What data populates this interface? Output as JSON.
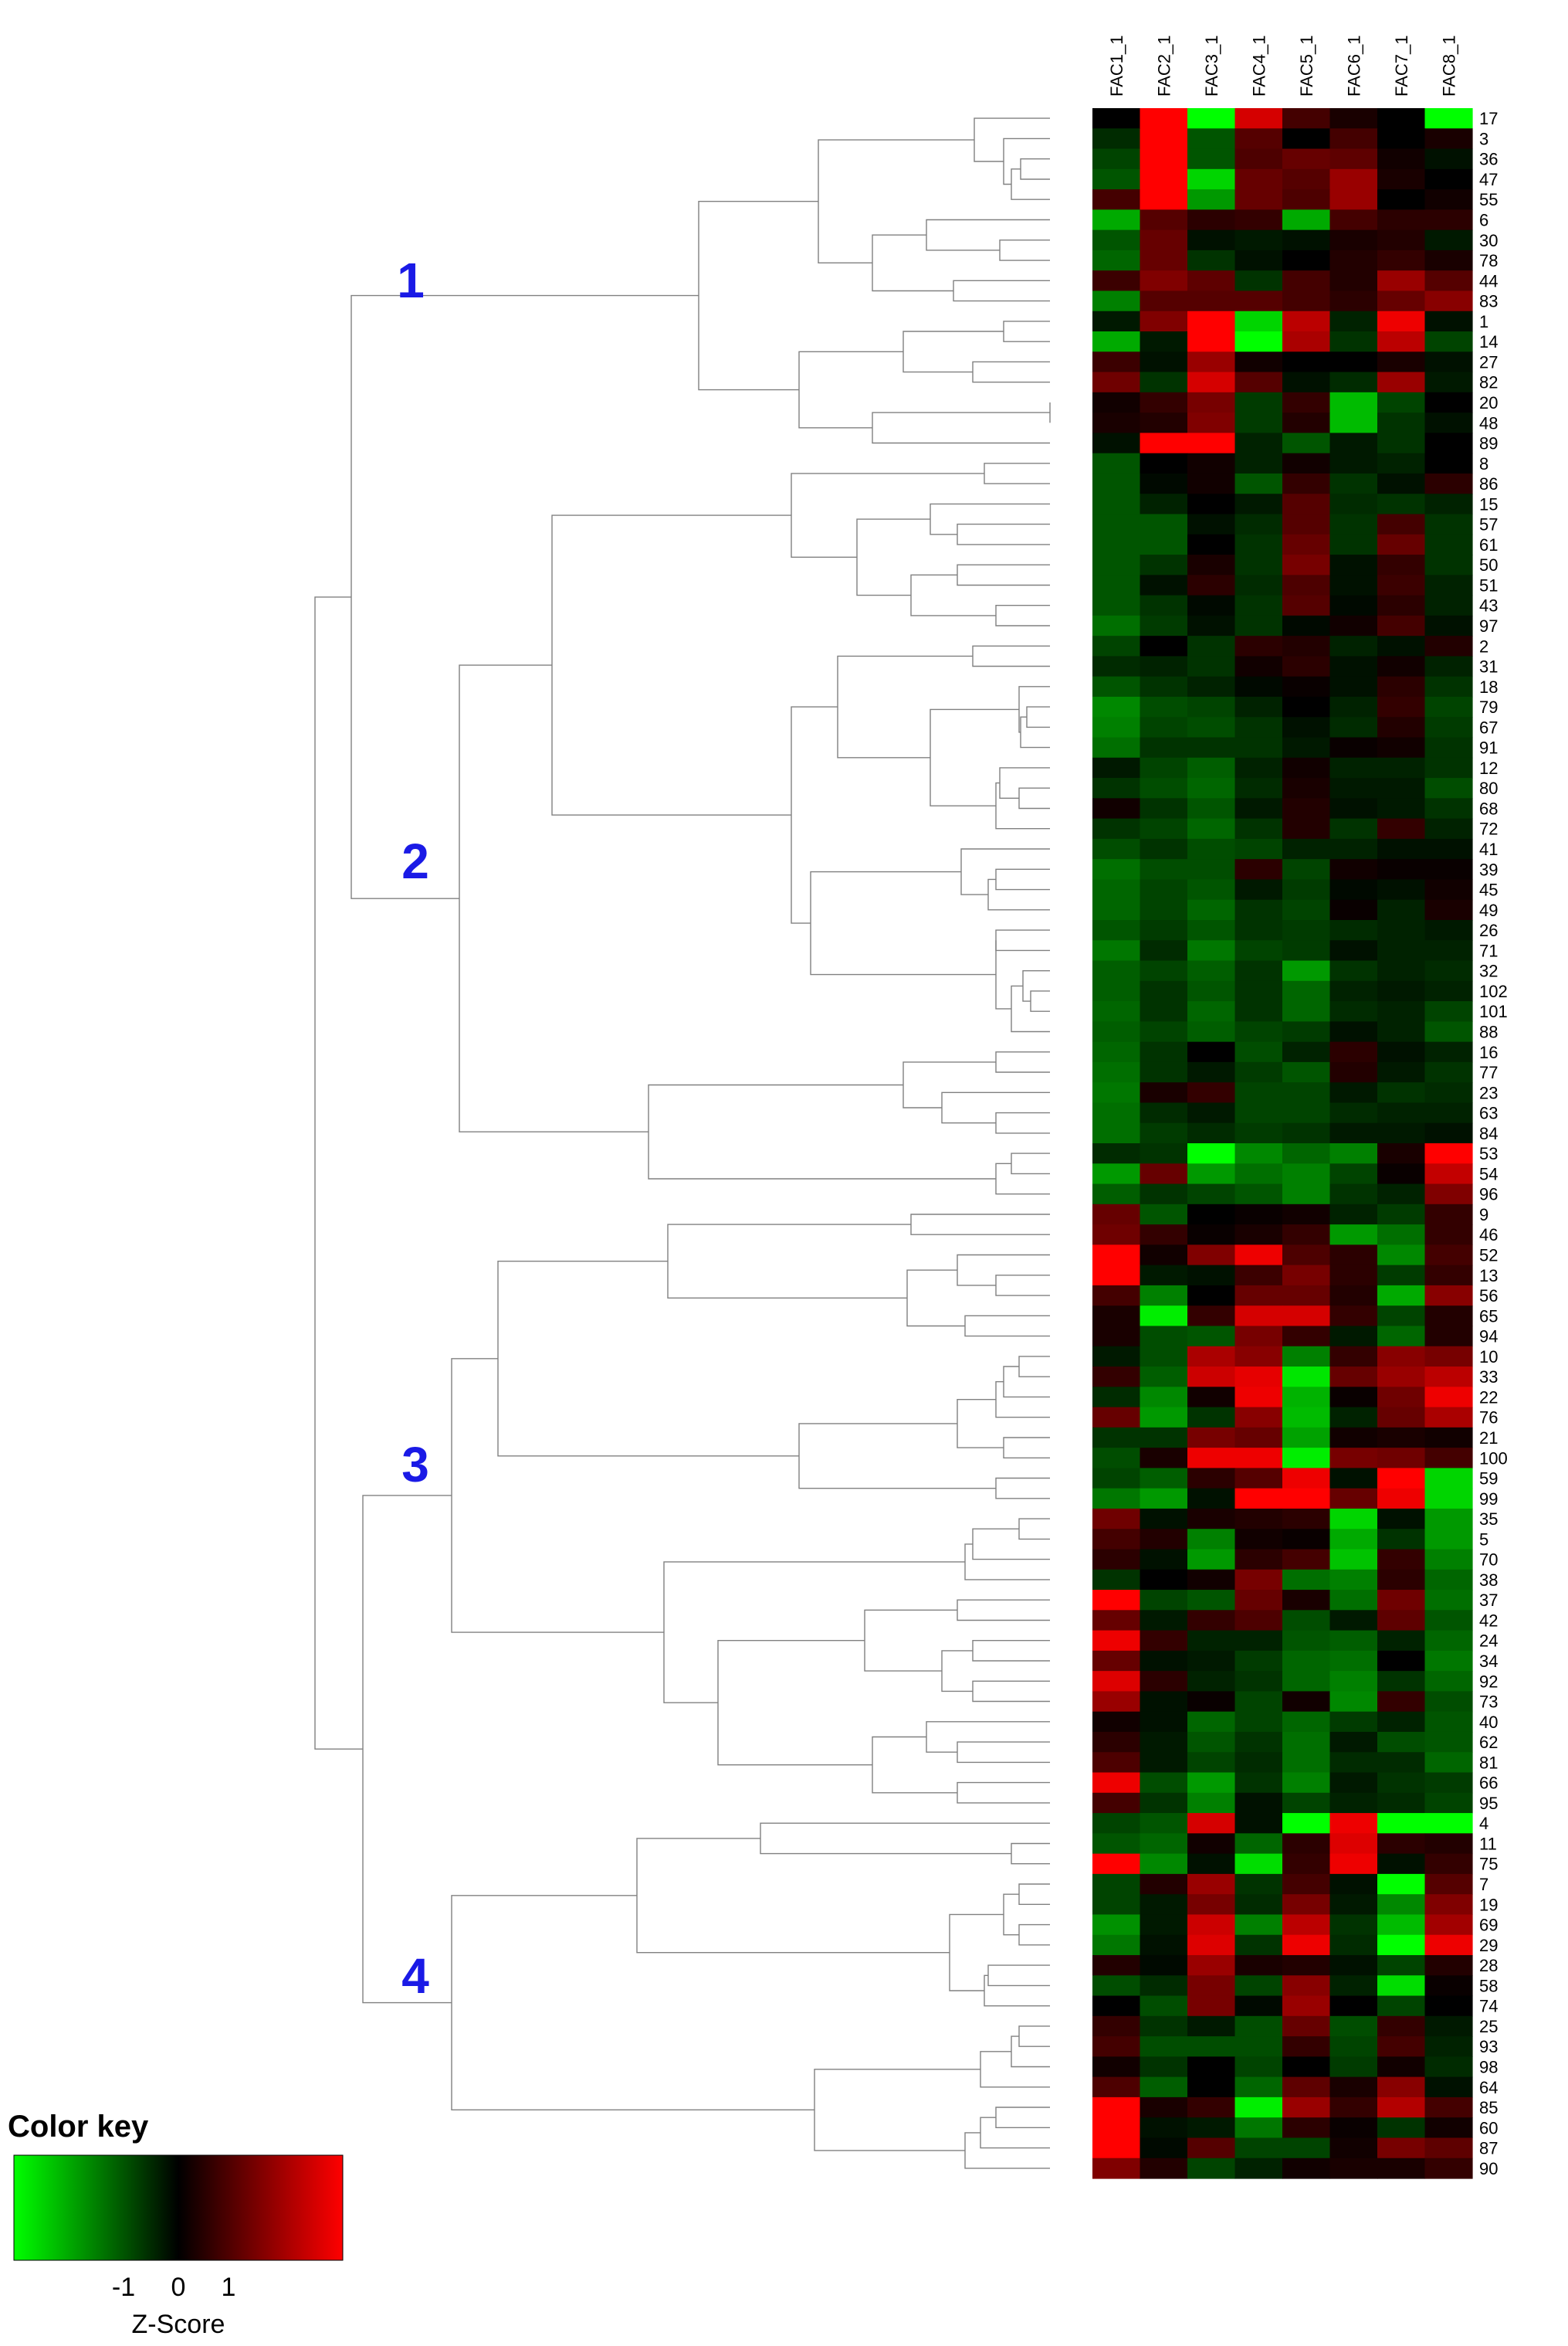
{
  "chart_data": {
    "type": "heatmap",
    "title": "",
    "columns": [
      "FAC1_1",
      "FAC2_1",
      "FAC3_1",
      "FAC4_1",
      "FAC5_1",
      "FAC6_1",
      "FAC7_1",
      "FAC8_1"
    ],
    "rows": [
      "17",
      "3",
      "36",
      "47",
      "55",
      "6",
      "30",
      "78",
      "44",
      "83",
      "1",
      "14",
      "27",
      "82",
      "20",
      "48",
      "89",
      "8",
      "86",
      "15",
      "57",
      "61",
      "50",
      "51",
      "43",
      "97",
      "2",
      "31",
      "18",
      "79",
      "67",
      "91",
      "12",
      "80",
      "68",
      "72",
      "41",
      "39",
      "45",
      "49",
      "26",
      "71",
      "32",
      "102",
      "101",
      "88",
      "16",
      "77",
      "23",
      "63",
      "84",
      "53",
      "54",
      "96",
      "9",
      "46",
      "52",
      "13",
      "56",
      "65",
      "94",
      "10",
      "33",
      "22",
      "76",
      "21",
      "100",
      "59",
      "99",
      "35",
      "5",
      "70",
      "38",
      "37",
      "42",
      "24",
      "34",
      "92",
      "73",
      "40",
      "62",
      "81",
      "66",
      "95",
      "4",
      "11",
      "75",
      "7",
      "19",
      "69",
      "29",
      "28",
      "58",
      "74",
      "25",
      "93",
      "98",
      "64",
      "85",
      "60",
      "87",
      "90"
    ],
    "values": [
      [
        0,
        3,
        -3,
        2.5,
        0.8,
        0.3,
        0,
        -3
      ],
      [
        -0.5,
        3,
        -1,
        1,
        0,
        0.8,
        0,
        0.3
      ],
      [
        -0.8,
        3,
        -1,
        0.9,
        1.2,
        1.1,
        0.2,
        -0.2
      ],
      [
        -1,
        3,
        -2.5,
        1.2,
        1,
        1.8,
        0.3,
        0
      ],
      [
        0.8,
        3,
        -1.8,
        1.2,
        0.9,
        1.8,
        0,
        0.2
      ],
      [
        -2,
        1,
        0.5,
        0.6,
        -2,
        0.8,
        0.5,
        0.5
      ],
      [
        -1,
        1.2,
        -0.2,
        -0.3,
        -0.2,
        0.3,
        0.4,
        -0.3
      ],
      [
        -1.2,
        1.2,
        -0.6,
        -0.2,
        0,
        0.4,
        0.6,
        0.3
      ],
      [
        0.7,
        1.5,
        1.1,
        -0.6,
        0.8,
        0.4,
        1.8,
        1
      ],
      [
        -1.5,
        1,
        1,
        1,
        0.8,
        0.5,
        1.2,
        1.6
      ],
      [
        -0.3,
        1.5,
        3,
        -2.5,
        2.2,
        -0.4,
        2.8,
        -0.2
      ],
      [
        -2,
        -0.3,
        3,
        -3,
        2,
        -0.6,
        2.2,
        -0.8
      ],
      [
        0.7,
        -0.2,
        1.8,
        0.2,
        0,
        0,
        0.3,
        -0.2
      ],
      [
        1.3,
        -0.6,
        2.5,
        1,
        -0.2,
        -0.5,
        1.8,
        -0.3
      ],
      [
        0.2,
        0.6,
        1.4,
        -0.7,
        0.6,
        -2.2,
        -0.8,
        0
      ],
      [
        0.3,
        0.4,
        1.5,
        -0.7,
        0.4,
        -2.2,
        -0.6,
        -0.2
      ],
      [
        -0.2,
        3,
        3,
        -0.4,
        -1,
        -0.3,
        -0.6,
        0
      ],
      [
        -1,
        0,
        0.2,
        -0.4,
        0.2,
        -0.3,
        -0.4,
        0
      ],
      [
        -1,
        -0.1,
        0.2,
        -1,
        0.6,
        -0.6,
        -0.2,
        0.5
      ],
      [
        -1,
        -0.4,
        0,
        -0.3,
        1,
        -0.5,
        -0.6,
        -0.4
      ],
      [
        -1,
        -1,
        -0.2,
        -0.5,
        1,
        -0.6,
        0.8,
        -0.6
      ],
      [
        -1,
        -1,
        0,
        -0.6,
        1.2,
        -0.6,
        1.2,
        -0.6
      ],
      [
        -1,
        -0.6,
        0.3,
        -0.6,
        1.4,
        -0.2,
        0.6,
        -0.6
      ],
      [
        -1,
        -0.2,
        0.5,
        -0.5,
        0.9,
        -0.2,
        0.7,
        -0.4
      ],
      [
        -1,
        -0.6,
        -0.1,
        -0.6,
        1,
        -0.1,
        0.5,
        -0.4
      ],
      [
        -1.3,
        -0.7,
        -0.2,
        -0.6,
        -0.1,
        0.2,
        0.8,
        -0.2
      ],
      [
        -0.8,
        0,
        -0.6,
        0.5,
        0.4,
        -0.4,
        -0.2,
        0.4
      ],
      [
        -0.5,
        -0.4,
        -0.6,
        0.2,
        0.5,
        -0.2,
        0.2,
        -0.4
      ],
      [
        -1,
        -0.6,
        -0.4,
        -0.1,
        0.1,
        -0.2,
        0.5,
        -0.6
      ],
      [
        -1.6,
        -0.9,
        -0.8,
        -0.4,
        0,
        -0.4,
        0.6,
        -0.8
      ],
      [
        -1.5,
        -0.8,
        -0.9,
        -0.6,
        -0.2,
        -0.5,
        0.4,
        -0.7
      ],
      [
        -1.3,
        -0.6,
        -0.6,
        -0.6,
        -0.3,
        0.1,
        0.2,
        -0.6
      ],
      [
        -0.3,
        -0.8,
        -1.1,
        -0.4,
        0.2,
        -0.4,
        -0.4,
        -0.6
      ],
      [
        -0.6,
        -0.9,
        -1.2,
        -0.5,
        0.3,
        -0.3,
        -0.3,
        -0.9
      ],
      [
        0.2,
        -0.6,
        -1,
        -0.3,
        0.4,
        -0.2,
        -0.3,
        -0.6
      ],
      [
        -0.6,
        -0.8,
        -1.2,
        -0.6,
        0.4,
        -0.6,
        0.6,
        -0.4
      ],
      [
        -0.9,
        -0.6,
        -0.9,
        -0.8,
        -0.4,
        -0.4,
        -0.2,
        -0.2
      ],
      [
        -1.3,
        -0.9,
        -0.9,
        0.5,
        -0.8,
        0.2,
        0.1,
        0.1
      ],
      [
        -1.2,
        -0.8,
        -1,
        -0.3,
        -0.7,
        -0.1,
        -0.2,
        0.2
      ],
      [
        -1.2,
        -0.8,
        -1.2,
        -0.6,
        -0.8,
        0.1,
        -0.4,
        0.3
      ],
      [
        -1,
        -0.7,
        -1,
        -0.6,
        -0.7,
        -0.5,
        -0.4,
        -0.3
      ],
      [
        -1.4,
        -0.5,
        -1.4,
        -0.8,
        -0.7,
        -0.2,
        -0.4,
        -0.4
      ],
      [
        -1.1,
        -0.8,
        -1.1,
        -0.6,
        -1.8,
        -0.6,
        -0.4,
        -0.5
      ],
      [
        -1.1,
        -0.6,
        -1,
        -0.6,
        -1.2,
        -0.4,
        -0.3,
        -0.4
      ],
      [
        -1.2,
        -0.6,
        -1.2,
        -0.6,
        -1.2,
        -0.5,
        -0.4,
        -0.8
      ],
      [
        -1.1,
        -0.8,
        -1.1,
        -0.8,
        -0.7,
        -0.2,
        -0.4,
        -1
      ],
      [
        -1.2,
        -0.6,
        0,
        -0.9,
        -0.4,
        0.5,
        -0.2,
        -0.4
      ],
      [
        -1.3,
        -0.6,
        -0.3,
        -0.7,
        -1,
        0.4,
        -0.3,
        -0.6
      ],
      [
        -1.4,
        0.3,
        0.6,
        -0.8,
        -0.8,
        -0.3,
        -0.6,
        -0.5
      ],
      [
        -1.3,
        -0.5,
        -0.3,
        -0.8,
        -0.8,
        -0.5,
        -0.4,
        -0.4
      ],
      [
        -1.3,
        -0.7,
        -0.5,
        -0.7,
        -0.6,
        -0.3,
        -0.3,
        -0.2
      ],
      [
        -0.5,
        -0.6,
        -3,
        -1.6,
        -1.2,
        -1.5,
        0.3,
        3
      ],
      [
        -1.8,
        1.2,
        -1.8,
        -1.3,
        -1.5,
        -0.8,
        0.1,
        2.3
      ],
      [
        -1.1,
        -0.6,
        -0.8,
        -1,
        -1.5,
        -0.6,
        -0.4,
        1.5
      ],
      [
        1.2,
        -1,
        0,
        0.1,
        0.2,
        -0.4,
        -0.7,
        0.6
      ],
      [
        1.3,
        0.6,
        0.1,
        0.3,
        0.6,
        -1.8,
        -1.3,
        0.6
      ],
      [
        3,
        0.2,
        1.5,
        2.8,
        0.9,
        0.5,
        -1.6,
        0.8
      ],
      [
        3,
        -0.3,
        -0.2,
        0.7,
        1.4,
        0.5,
        -0.7,
        0.6
      ],
      [
        0.8,
        -1.5,
        0,
        1.2,
        1.2,
        0.4,
        -2,
        1.6
      ],
      [
        0.3,
        -2.8,
        0.6,
        2.5,
        2.5,
        0.6,
        -0.8,
        0.4
      ],
      [
        0.3,
        -0.9,
        -1,
        1.4,
        0.6,
        -0.3,
        -1.2,
        0.4
      ],
      [
        -0.3,
        -0.9,
        2,
        1.6,
        -1.5,
        0.6,
        1.6,
        1.4
      ],
      [
        0.6,
        -1.1,
        2.4,
        2.7,
        -2.7,
        1.2,
        1.8,
        2.2
      ],
      [
        -0.5,
        -1.6,
        0.2,
        2.8,
        -2.1,
        0.1,
        1.3,
        2.8
      ],
      [
        1.2,
        -1.8,
        -0.6,
        1.6,
        -2.2,
        -0.4,
        1.2,
        2
      ],
      [
        -0.6,
        -0.6,
        1.4,
        1.2,
        -1.9,
        0.2,
        0.3,
        0.2
      ],
      [
        -0.9,
        0.3,
        2.8,
        2.8,
        -2.8,
        1.4,
        1.3,
        0.8
      ],
      [
        -0.8,
        -1.1,
        0.5,
        1,
        2.8,
        -0.2,
        3,
        -2.5
      ],
      [
        -1.4,
        -1.8,
        -0.2,
        3,
        3,
        1.2,
        2.8,
        -2.5
      ],
      [
        1.3,
        -0.2,
        0.3,
        0.4,
        0.5,
        -2.5,
        -0.2,
        -1.8
      ],
      [
        0.8,
        0.4,
        -1.5,
        0.2,
        0.1,
        -2,
        -0.6,
        -1.8
      ],
      [
        0.5,
        -0.2,
        -1.8,
        0.5,
        0.8,
        -2.3,
        0.6,
        -1.5
      ],
      [
        -0.6,
        0,
        0.2,
        1.4,
        -1.3,
        -1.5,
        0.5,
        -1.2
      ],
      [
        3,
        -0.8,
        -1,
        1.2,
        0.3,
        -1.3,
        1.3,
        -1.3
      ],
      [
        1.2,
        -0.3,
        0.6,
        0.9,
        -0.9,
        -0.3,
        1.1,
        -1
      ],
      [
        2.8,
        0.6,
        -0.4,
        -0.4,
        -1,
        -1.1,
        -0.4,
        -1.2
      ],
      [
        1.2,
        -0.2,
        -0.3,
        -0.7,
        -1.2,
        -1.3,
        0,
        -1.4
      ],
      [
        2.6,
        0.5,
        -0.4,
        -0.6,
        -1.2,
        -1.5,
        -0.6,
        -1.2
      ],
      [
        1.8,
        -0.2,
        0.1,
        -0.8,
        0.2,
        -1.6,
        0.6,
        -0.9
      ],
      [
        0.2,
        -0.2,
        -1.2,
        -0.8,
        -1.2,
        -0.7,
        -0.4,
        -1
      ],
      [
        0.5,
        -0.3,
        -1,
        -0.6,
        -1.3,
        -0.3,
        -0.9,
        -1
      ],
      [
        0.9,
        -0.3,
        -0.8,
        -0.5,
        -1.3,
        -0.5,
        -0.5,
        -1.2
      ],
      [
        2.8,
        -0.9,
        -1.8,
        -0.6,
        -1.5,
        -0.3,
        -0.6,
        -0.7
      ],
      [
        0.8,
        -0.6,
        -1.5,
        -0.2,
        -0.8,
        -0.4,
        -0.5,
        -0.8
      ],
      [
        -0.8,
        -1,
        2.5,
        -0.2,
        -3,
        2.8,
        -3,
        -3
      ],
      [
        -1,
        -1.2,
        0.2,
        -1.2,
        0.5,
        2.6,
        0.5,
        0.4
      ],
      [
        3,
        -1.6,
        -0.2,
        -2.6,
        0.6,
        2.8,
        -0.2,
        0.6
      ],
      [
        -0.8,
        0.4,
        1.8,
        -0.6,
        0.8,
        -0.2,
        -3,
        1
      ],
      [
        -0.8,
        -0.3,
        1.4,
        -0.5,
        1.4,
        -0.3,
        -1.6,
        1.5
      ],
      [
        -1.7,
        -0.3,
        2.4,
        -1.5,
        2.2,
        -0.6,
        -2.2,
        1.9
      ],
      [
        -1.4,
        -0.2,
        2.6,
        -0.6,
        2.8,
        -0.5,
        -3,
        2.8
      ],
      [
        0.4,
        -0.1,
        1.8,
        0.3,
        0.4,
        -0.2,
        -0.8,
        0.4
      ],
      [
        -0.9,
        -0.5,
        1.4,
        -0.8,
        1.6,
        -0.4,
        -2.6,
        0.1
      ],
      [
        0,
        -0.9,
        1.4,
        -0.1,
        1.8,
        0,
        -0.8,
        0
      ],
      [
        0.6,
        -0.6,
        -0.3,
        -0.9,
        1.2,
        -0.9,
        0.6,
        -0.3
      ],
      [
        0.8,
        -0.9,
        -0.9,
        -0.9,
        0.6,
        -0.8,
        0.8,
        -0.4
      ],
      [
        0.2,
        -0.6,
        0,
        -0.8,
        0,
        -0.7,
        0.2,
        -0.5
      ],
      [
        0.9,
        -1.1,
        0,
        -1.2,
        1.1,
        0.3,
        1.6,
        -0.2
      ],
      [
        3,
        0.3,
        0.6,
        -2.8,
        1.8,
        0.6,
        2.1,
        0.8
      ],
      [
        3,
        -0.2,
        -0.3,
        -1.4,
        0.5,
        0.1,
        -0.6,
        0.2
      ],
      [
        3,
        -0.1,
        1,
        -0.8,
        -0.8,
        0.2,
        1.4,
        1.1
      ],
      [
        1.5,
        0.4,
        -0.8,
        -0.4,
        0.2,
        0.3,
        0.3,
        0.6
      ]
    ],
    "cluster_labels": [
      "1",
      "2",
      "3",
      "4"
    ],
    "legend": {
      "title": "Color key",
      "ticks": [
        "-1",
        "0",
        "1"
      ],
      "xlabel": "Z-Score",
      "low_color": "#00ff00",
      "mid_color": "#000000",
      "high_color": "#ff0000",
      "placement": "bottom-left"
    }
  }
}
